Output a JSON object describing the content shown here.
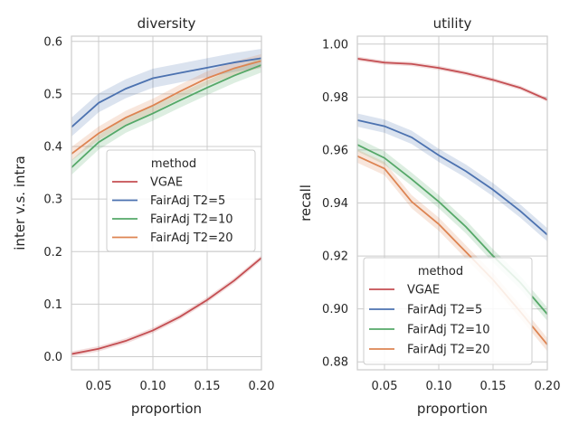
{
  "colors": {
    "VGAE": "#c44e52",
    "FairAdj T2=5": "#4c72b0",
    "FairAdj T2=10": "#55a868",
    "FairAdj T2=20": "#dd8452"
  },
  "chart_data": [
    {
      "type": "line",
      "title": "diversity",
      "xlabel": "proportion",
      "ylabel": "inter v.s. intra",
      "xlim": [
        0.025,
        0.2
      ],
      "ylim": [
        -0.025,
        0.61
      ],
      "xticks": [
        0.05,
        0.1,
        0.15,
        0.2
      ],
      "xtick_labels": [
        "0.05",
        "0.10",
        "0.15",
        "0.20"
      ],
      "yticks": [
        0.0,
        0.1,
        0.2,
        0.3,
        0.4,
        0.5,
        0.6
      ],
      "ytick_labels": [
        "0.0",
        "0.1",
        "0.2",
        "0.3",
        "0.4",
        "0.5",
        "0.6"
      ],
      "grid": true,
      "x": [
        0.025,
        0.05,
        0.075,
        0.1,
        0.125,
        0.15,
        0.175,
        0.2
      ],
      "legend": {
        "title": "method",
        "placement": "center-right"
      },
      "series": [
        {
          "name": "VGAE",
          "values": [
            0.005,
            0.015,
            0.03,
            0.05,
            0.076,
            0.108,
            0.145,
            0.188
          ],
          "band": 0.005
        },
        {
          "name": "FairAdj T2=5",
          "values": [
            0.437,
            0.483,
            0.51,
            0.53,
            0.54,
            0.55,
            0.56,
            0.568
          ],
          "band": 0.018
        },
        {
          "name": "FairAdj T2=10",
          "values": [
            0.36,
            0.408,
            0.44,
            0.463,
            0.488,
            0.512,
            0.535,
            0.555
          ],
          "band": 0.014
        },
        {
          "name": "FairAdj T2=20",
          "values": [
            0.386,
            0.425,
            0.455,
            0.478,
            0.505,
            0.53,
            0.549,
            0.563
          ],
          "band": 0.013
        }
      ]
    },
    {
      "type": "line",
      "title": "utility",
      "xlabel": "proportion",
      "ylabel": "recall",
      "xlim": [
        0.025,
        0.2
      ],
      "ylim": [
        0.877,
        1.003
      ],
      "xticks": [
        0.05,
        0.1,
        0.15,
        0.2
      ],
      "xtick_labels": [
        "0.05",
        "0.10",
        "0.15",
        "0.20"
      ],
      "yticks": [
        0.88,
        0.9,
        0.92,
        0.94,
        0.96,
        0.98,
        1.0
      ],
      "ytick_labels": [
        "0.88",
        "0.90",
        "0.92",
        "0.94",
        "0.96",
        "0.98",
        "1.00"
      ],
      "grid": true,
      "x": [
        0.025,
        0.05,
        0.075,
        0.1,
        0.125,
        0.15,
        0.175,
        0.2
      ],
      "legend": {
        "title": "method",
        "placement": "lower-right"
      },
      "series": [
        {
          "name": "VGAE",
          "values": [
            0.9945,
            0.993,
            0.9925,
            0.991,
            0.989,
            0.9865,
            0.9835,
            0.979
          ],
          "band": 0.0008
        },
        {
          "name": "FairAdj T2=5",
          "values": [
            0.9713,
            0.969,
            0.9648,
            0.958,
            0.952,
            0.945,
            0.937,
            0.928
          ],
          "band": 0.0025
        },
        {
          "name": "FairAdj T2=10",
          "values": [
            0.962,
            0.957,
            0.949,
            0.9405,
            0.931,
            0.92,
            0.91,
            0.898
          ],
          "band": 0.0025
        },
        {
          "name": "FairAdj T2=20",
          "values": [
            0.9577,
            0.953,
            0.9405,
            0.932,
            0.9215,
            0.911,
            0.899,
            0.8865
          ],
          "band": 0.0025
        }
      ]
    }
  ]
}
